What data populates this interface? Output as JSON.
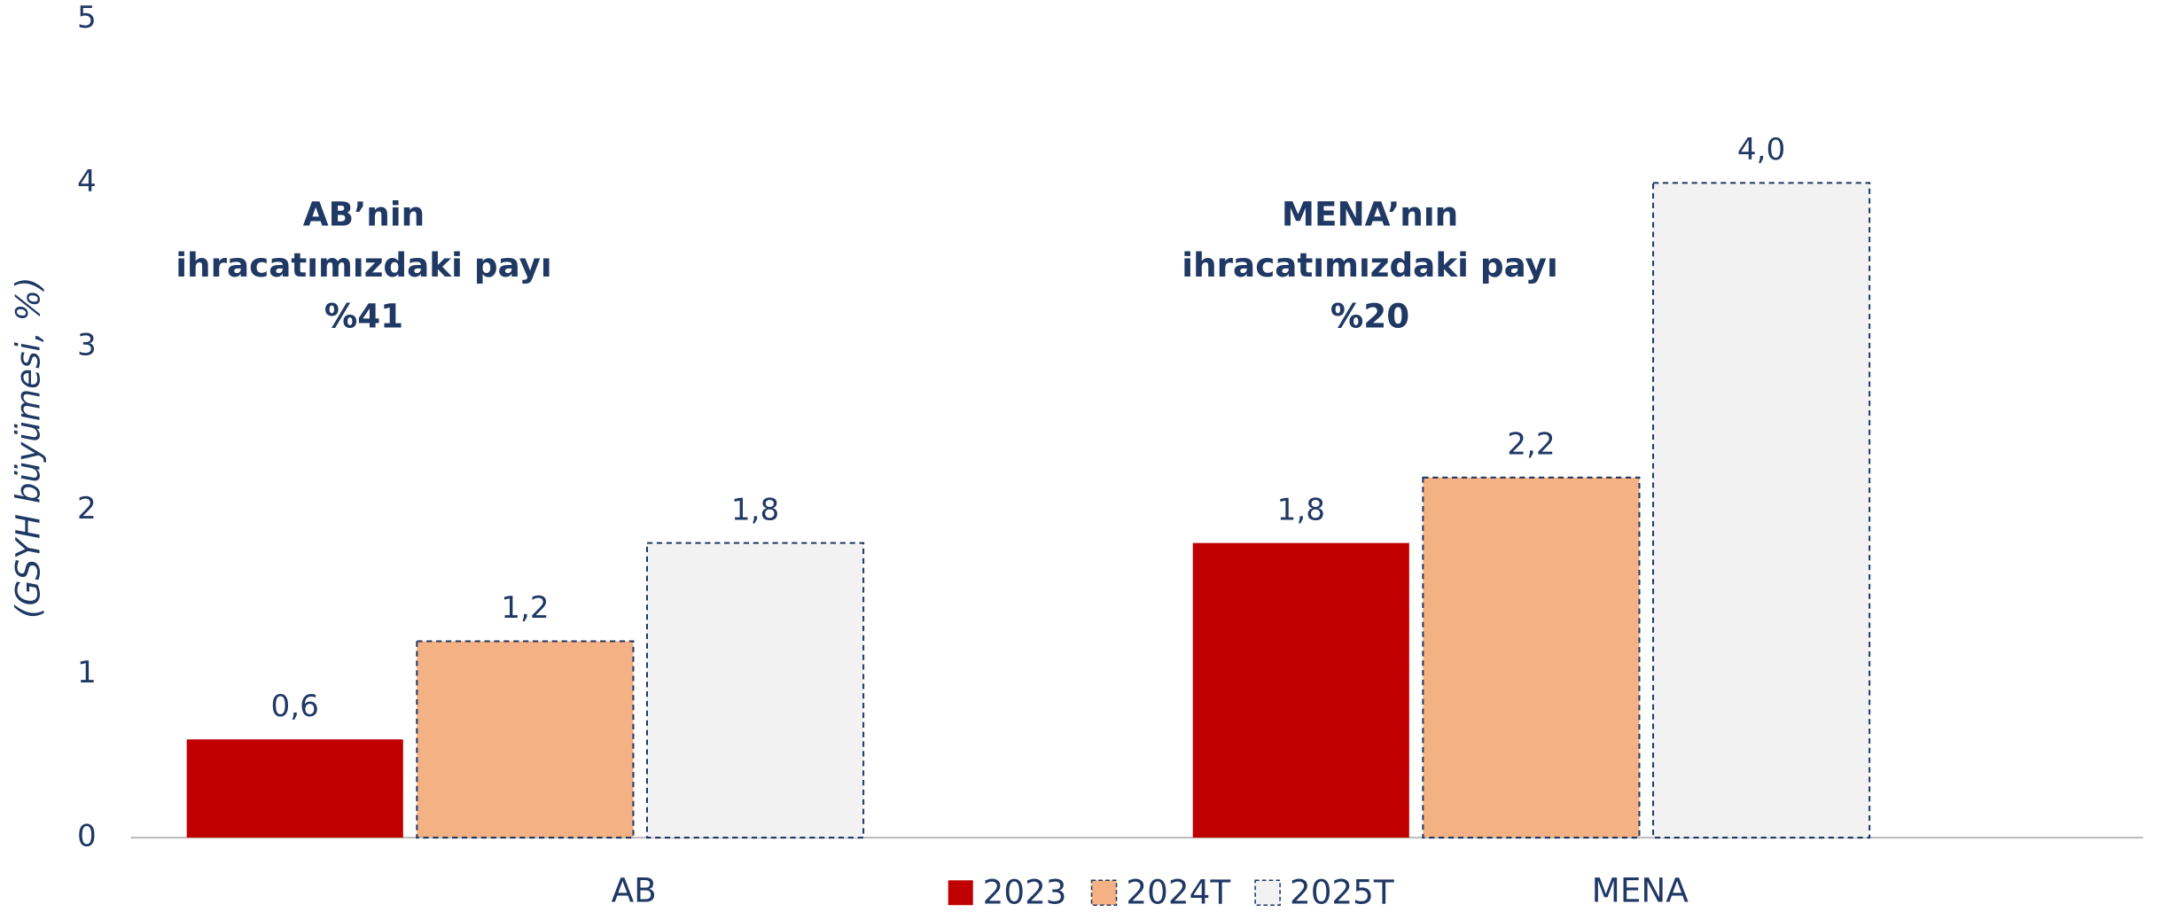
{
  "chart_data": {
    "type": "bar",
    "y_label": "(GSYH büyümesi, %)",
    "categories": [
      "AB",
      "MENA"
    ],
    "series": [
      {
        "name": "2023",
        "color": "#c00000",
        "values": [
          0.6,
          1.8
        ],
        "value_labels": [
          "0,6",
          "1,8"
        ]
      },
      {
        "name": "2024T",
        "color": "#f4b183",
        "border_style": "dashed",
        "border_color": "#1f3864",
        "values": [
          1.2,
          2.2
        ],
        "value_labels": [
          "1,2",
          "2,2"
        ]
      },
      {
        "name": "2025T",
        "color": "#f2f2f2",
        "border_style": "dashed",
        "border_color": "#1f3864",
        "values": [
          1.8,
          4.0
        ],
        "value_labels": [
          "1,8",
          "4,0"
        ]
      }
    ],
    "annotations": [
      [
        "AB’nin",
        "ihracatımızdaki payı",
        "%41"
      ],
      [
        "MENA’nın",
        "ihracatımızdaki payı",
        "%20"
      ]
    ],
    "ylim": [
      0,
      5
    ],
    "yticks": [
      0,
      1,
      2,
      3,
      4,
      5
    ],
    "grid": false,
    "legend": "bottom"
  }
}
